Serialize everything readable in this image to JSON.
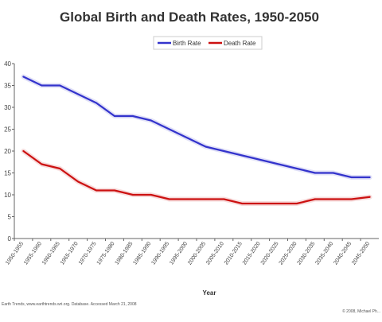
{
  "chart_data": {
    "type": "line",
    "title": "Global Birth and Death Rates, 1950-2050",
    "xlabel": "Year",
    "ylabel": "",
    "ylim": [
      0,
      40
    ],
    "yticks": [
      0,
      5,
      10,
      15,
      20,
      25,
      30,
      35,
      40
    ],
    "grid": false,
    "legend_position": "top-right",
    "categories": [
      "1950-1955",
      "1955-1960",
      "1960-1965",
      "1965-1970",
      "1970-1975",
      "1975-1980",
      "1980-1985",
      "1985-1990",
      "1990-1995",
      "1995-2000",
      "2000-2005",
      "2005-2010",
      "2010-2015",
      "2015-2020",
      "2020-2025",
      "2025-2030",
      "2030-2035",
      "2035-2040",
      "2040-2045",
      "2045-2050"
    ],
    "series": [
      {
        "name": "Birth Rate",
        "color": "#3333cc",
        "values": [
          37,
          35,
          35,
          33,
          31,
          28,
          28,
          27,
          25,
          23,
          21,
          20,
          19,
          18,
          17,
          16,
          15,
          15,
          14,
          14
        ]
      },
      {
        "name": "Death Rate",
        "color": "#cc1111",
        "values": [
          20,
          17,
          16,
          13,
          11,
          11,
          10,
          10,
          9,
          9,
          9,
          9,
          8,
          8,
          8,
          8,
          9,
          9,
          9,
          9.5
        ]
      }
    ],
    "footnote_left": "Earth Trends, www.earthtrends.wri.org. Database. Accessed March 21, 2008",
    "footnote_right": "© 2008, Michael Ph..."
  }
}
